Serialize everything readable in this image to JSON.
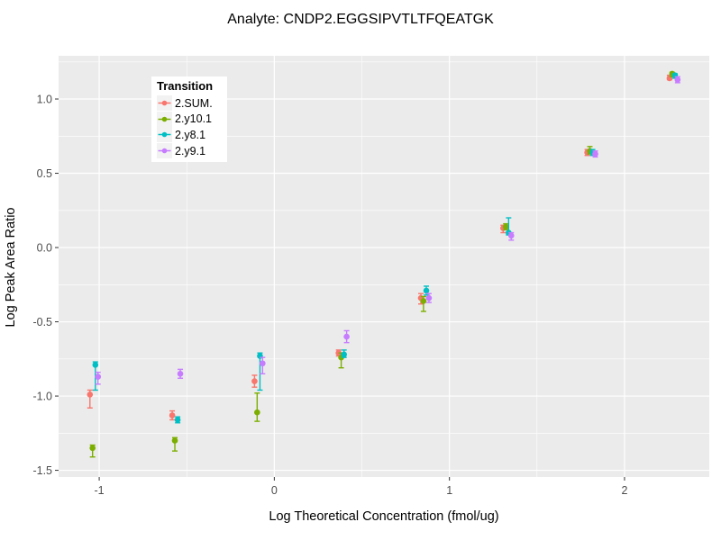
{
  "title": "Analyte: CNDP2.EGGSIPVTLTFQEATGK",
  "chart_data": {
    "type": "scatter",
    "title": "Analyte: CNDP2.EGGSIPVTLTFQEATGK",
    "xlabel": "Log Theoretical Concentration (fmol/ug)",
    "ylabel": "Log Peak Area Ratio",
    "xlim": [
      -1.232,
      2.484
    ],
    "ylim": [
      -1.545,
      1.291
    ],
    "grid": true,
    "panel_bg": "#EBEBEB",
    "grid_color": "#FFFFFF",
    "tick_color": "#333333",
    "tick_label_color": "#4D4D4D",
    "x_ticks": [
      -1,
      0,
      1,
      2
    ],
    "x_tick_labels": [
      "-1",
      "0",
      "1",
      "2"
    ],
    "y_ticks": [
      1.0,
      0.5,
      0.0,
      -0.5,
      -1.0,
      -1.5
    ],
    "y_tick_labels": [
      "1.0",
      "0.5",
      "0.0",
      "-0.5",
      "-1.0",
      "-1.5"
    ],
    "x_minor_ticks": [
      -0.5,
      0.5,
      1.5
    ],
    "y_minor_ticks": [
      1.25,
      0.75,
      0.25,
      -0.25,
      -0.75,
      -1.25
    ],
    "legend_title": "Transition",
    "legend_position": "top-left-inside",
    "x": [
      -1.03,
      -0.56,
      -0.09,
      0.39,
      0.86,
      1.33,
      1.81,
      2.28
    ],
    "dodge_offsets": [
      -0.023,
      -0.008,
      0.008,
      0.023
    ],
    "series": [
      {
        "name": "2.SUM.",
        "color": "#F8766D",
        "y": [
          -0.99,
          -1.13,
          -0.9,
          -0.71,
          -0.34,
          0.13,
          0.64,
          1.14
        ],
        "y_lo": [
          -1.08,
          -1.16,
          -0.94,
          -0.73,
          -0.38,
          0.1,
          0.62,
          1.13
        ],
        "y_hi": [
          -0.96,
          -1.1,
          -0.86,
          -0.69,
          -0.31,
          0.15,
          0.66,
          1.16
        ]
      },
      {
        "name": "2.y10.1",
        "color": "#7CAE00",
        "y": [
          -1.35,
          -1.3,
          -1.11,
          -0.74,
          -0.36,
          0.14,
          0.65,
          1.17
        ],
        "y_lo": [
          -1.41,
          -1.37,
          -1.17,
          -0.81,
          -0.43,
          0.12,
          0.63,
          1.15
        ],
        "y_hi": [
          -1.33,
          -1.28,
          -0.98,
          -0.71,
          -0.33,
          0.16,
          0.68,
          1.18
        ]
      },
      {
        "name": "2.y8.1",
        "color": "#00BFC4",
        "y": [
          -0.79,
          -1.16,
          -0.73,
          -0.72,
          -0.29,
          0.1,
          0.64,
          1.16
        ],
        "y_lo": [
          -0.96,
          -1.18,
          -0.96,
          -0.74,
          -0.32,
          0.085,
          0.62,
          1.14
        ],
        "y_hi": [
          -0.77,
          -1.14,
          -0.71,
          -0.69,
          -0.26,
          0.2,
          0.66,
          1.17
        ]
      },
      {
        "name": "2.y9.1",
        "color": "#C77CFF",
        "y": [
          -0.87,
          -0.85,
          -0.78,
          -0.6,
          -0.34,
          0.08,
          0.63,
          1.13
        ],
        "y_lo": [
          -0.92,
          -0.88,
          -0.85,
          -0.64,
          -0.37,
          0.05,
          0.61,
          1.11
        ],
        "y_hi": [
          -0.84,
          -0.82,
          -0.74,
          -0.56,
          -0.31,
          0.1,
          0.65,
          1.15
        ]
      }
    ]
  }
}
